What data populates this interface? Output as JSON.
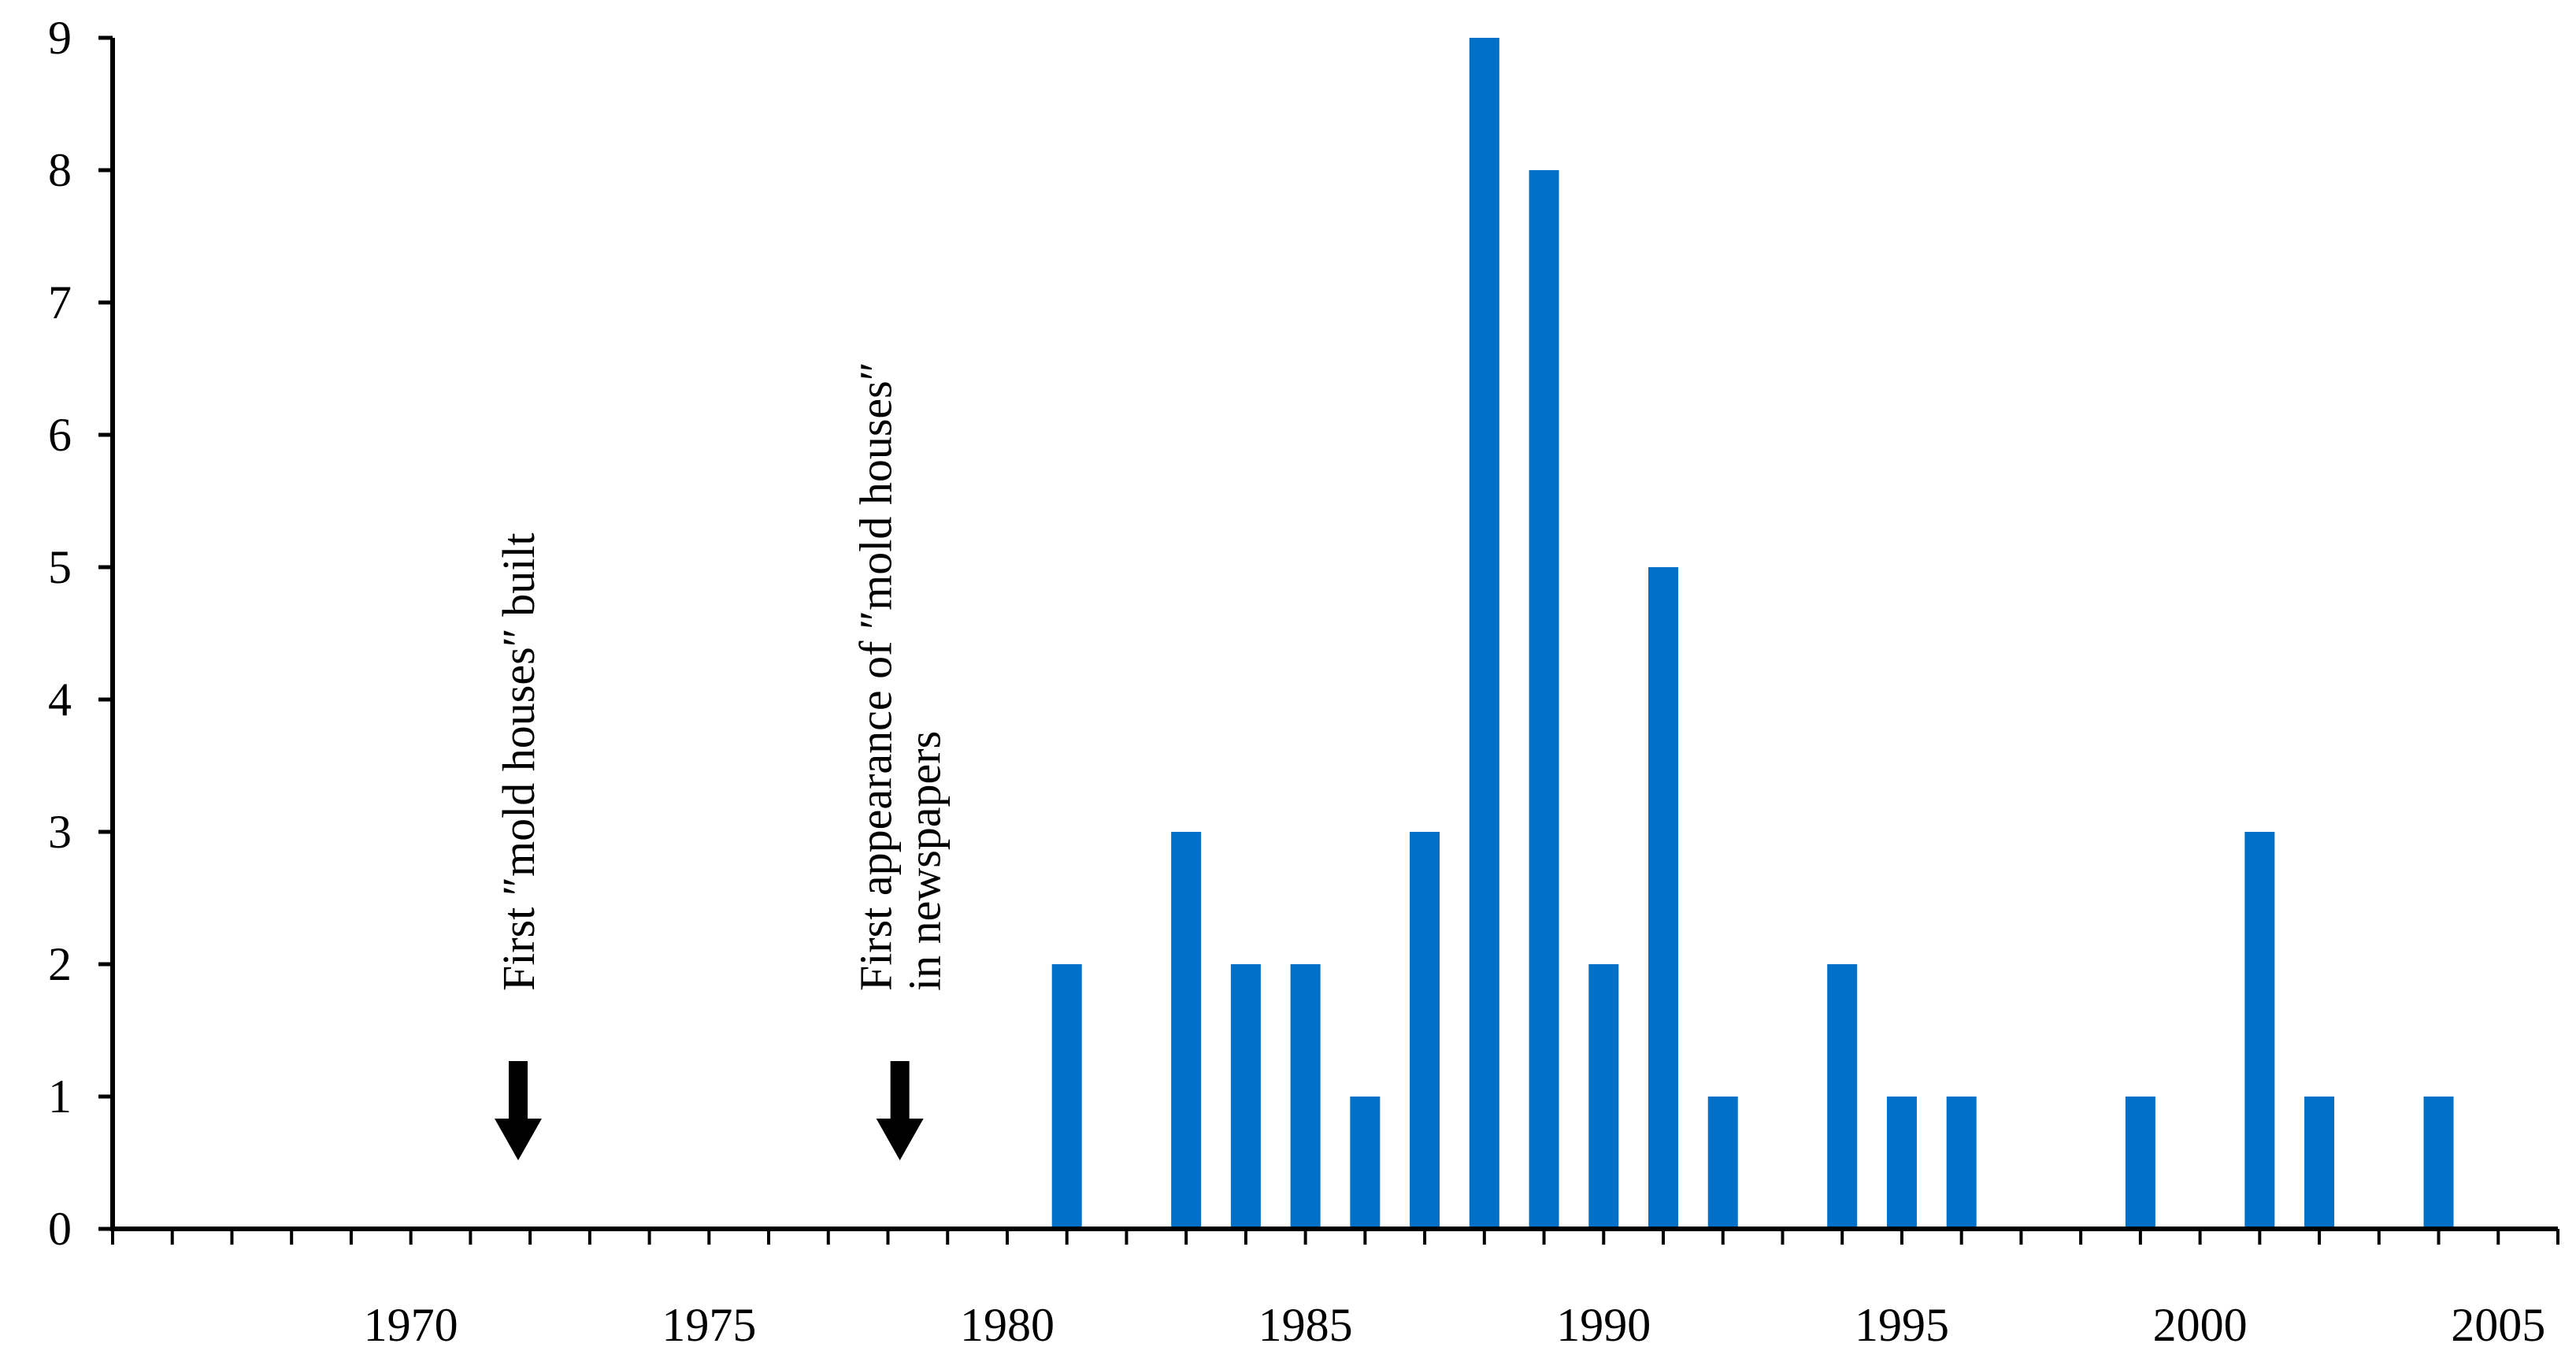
{
  "chart_data": {
    "type": "bar",
    "title": "",
    "xlabel": "",
    "ylabel": "",
    "x": [
      1981,
      1983,
      1984,
      1985,
      1986,
      1987,
      1988,
      1989,
      1990,
      1991,
      1992,
      1994,
      1995,
      1996,
      1999,
      2001,
      2002,
      2004
    ],
    "values": [
      2,
      3,
      2,
      2,
      1,
      3,
      9,
      8,
      2,
      5,
      1,
      2,
      1,
      1,
      1,
      3,
      1,
      1
    ],
    "xlim": [
      1965,
      2006
    ],
    "ylim": [
      0,
      9
    ],
    "x_tick_labels": [
      "1970",
      "1975",
      "1980",
      "1985",
      "1990",
      "1995",
      "2000",
      "2005"
    ],
    "y_tick_labels": [
      "0",
      "1",
      "2",
      "3",
      "4",
      "5",
      "6",
      "7",
      "8",
      "9"
    ],
    "grid": false,
    "bar_color": "#0070C8",
    "annotations": [
      {
        "x": 1971.8,
        "lines": [
          "First ″mold houses″ built"
        ],
        "marker": "down-arrow"
      },
      {
        "x": 1978.2,
        "lines": [
          "First appearance of ″mold houses″",
          "in newspapers"
        ],
        "marker": "down-arrow"
      }
    ]
  }
}
